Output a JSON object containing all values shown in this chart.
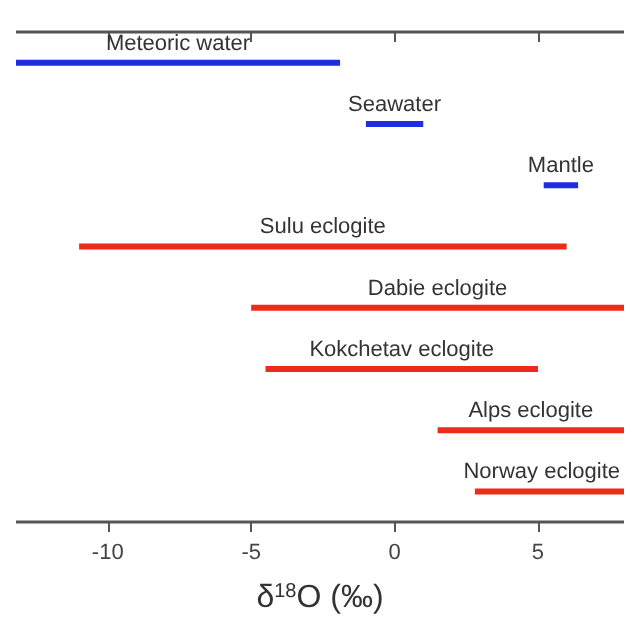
{
  "chart_data": {
    "type": "bar",
    "orientation": "horizontal",
    "categories": [
      "Meteoric water",
      "Seawater",
      "Mantle",
      "Sulu eclogite",
      "Dabie eclogite",
      "Kokchetav eclogite",
      "Alps eclogite",
      "Norway eclogite"
    ],
    "base": [
      -13.2,
      -1,
      5.2,
      -11,
      -5,
      -4.5,
      1.5,
      2.8
    ],
    "values": [
      11.3,
      2,
      1.2,
      17,
      13,
      9.5,
      6.5,
      5.2
    ],
    "colors": [
      "#1f2ee0",
      "#1f2ee0",
      "#1f2ee0",
      "#ee2a1a",
      "#ee2a1a",
      "#ee2a1a",
      "#ee2a1a",
      "#ee2a1a"
    ],
    "xlim": [
      -13.2,
      8
    ],
    "xticks": [
      -10,
      -5,
      0,
      5
    ],
    "xlabel": "δ$^{18}$O (‰)"
  }
}
